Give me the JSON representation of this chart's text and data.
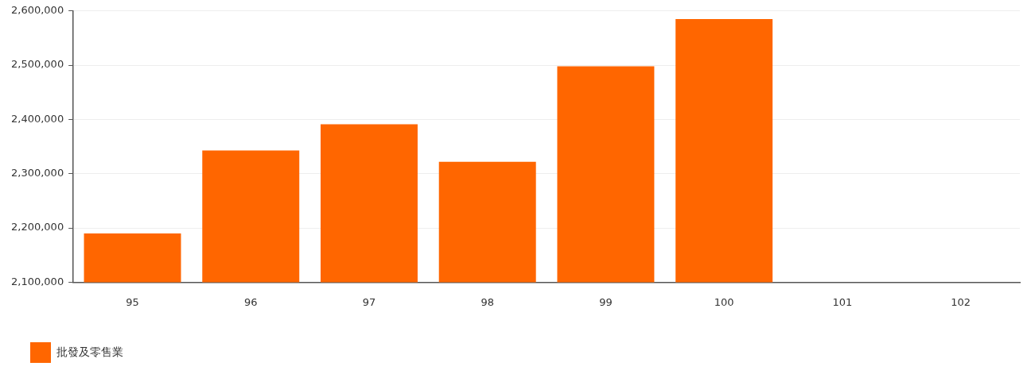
{
  "chart_data": {
    "type": "bar",
    "categories": [
      "95",
      "96",
      "97",
      "98",
      "99",
      "100",
      "101",
      "102"
    ],
    "series": [
      {
        "name": "批發及零售業",
        "color": "#ff6600",
        "values": [
          2190000,
          2343000,
          2391000,
          2322000,
          2498000,
          2585000,
          null,
          null
        ]
      }
    ],
    "ylim": [
      2100000,
      2600000
    ],
    "yticks": [
      {
        "value": 2100000,
        "label": "2,100,000"
      },
      {
        "value": 2200000,
        "label": "2,200,000"
      },
      {
        "value": 2300000,
        "label": "2,300,000"
      },
      {
        "value": 2400000,
        "label": "2,400,000"
      },
      {
        "value": 2500000,
        "label": "2,500,000"
      },
      {
        "value": 2600000,
        "label": "2,600,000"
      }
    ],
    "grid": "y",
    "legend": "bottom left"
  }
}
